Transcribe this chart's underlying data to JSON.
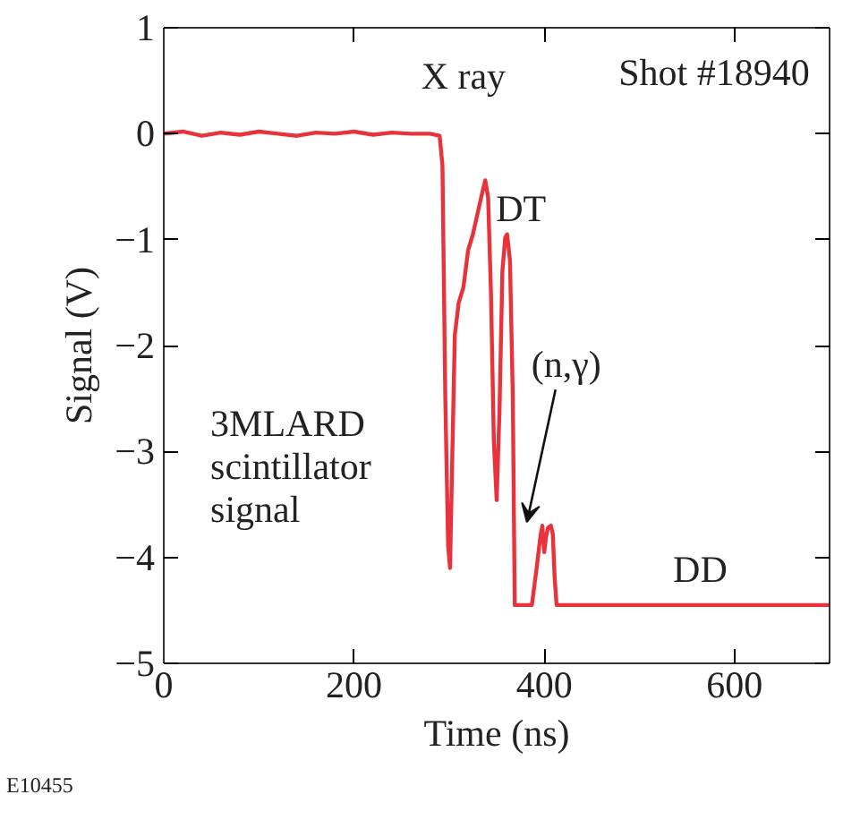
{
  "chart_data": {
    "type": "line",
    "xlabel": "Time (ns)",
    "ylabel": "Signal (V)",
    "x": [
      0,
      20,
      40,
      60,
      80,
      100,
      120,
      140,
      160,
      180,
      200,
      220,
      240,
      260,
      280,
      290,
      293,
      296,
      299,
      301,
      303,
      306,
      310,
      315,
      320,
      325,
      330,
      335,
      338,
      341,
      344,
      347,
      350,
      353,
      356,
      359,
      361,
      364,
      367,
      369,
      372,
      380,
      387,
      392,
      396,
      398,
      400,
      402,
      404,
      407,
      409,
      411,
      413,
      414,
      450,
      500,
      550,
      600,
      650,
      700
    ],
    "series": [
      {
        "color": "#e8333c",
        "values": [
          0,
          0.02,
          -0.02,
          0.01,
          -0.01,
          0.02,
          0,
          -0.02,
          0.01,
          0,
          0.02,
          -0.01,
          0.01,
          0,
          0,
          -0.02,
          -0.3,
          -2.5,
          -3.9,
          -4.1,
          -3.2,
          -1.9,
          -1.6,
          -1.45,
          -1.1,
          -0.95,
          -0.75,
          -0.55,
          -0.44,
          -0.6,
          -1.5,
          -2.9,
          -3.46,
          -2.6,
          -1.3,
          -0.98,
          -0.95,
          -1.2,
          -2.5,
          -4.45,
          -4.45,
          -4.45,
          -4.45,
          -4.1,
          -3.8,
          -3.7,
          -3.95,
          -3.8,
          -3.72,
          -3.7,
          -3.78,
          -4.2,
          -4.45,
          -4.45,
          -4.45,
          -4.45,
          -4.45,
          -4.45,
          -4.45,
          -4.45
        ]
      }
    ],
    "xlim": [
      0,
      700
    ],
    "ylim": [
      -5,
      1
    ],
    "xticks": [
      0,
      200,
      400,
      600
    ],
    "yticks": [
      -5,
      -4,
      -3,
      -2,
      -1,
      0,
      1
    ],
    "line_style": "solid",
    "marker": "none",
    "annotations": [
      "Shot #18940",
      "3MLARD\nscintillator\nsignal",
      "E10455",
      {
        "text": "X ray",
        "x": 300,
        "y": 0
      },
      {
        "text": "DT",
        "x": 338,
        "y": -0.44
      },
      {
        "text": "(n,γ)",
        "x": 378,
        "y": -3.7
      },
      {
        "text": "DD",
        "x": 564,
        "y": -4.45
      }
    ]
  }
}
